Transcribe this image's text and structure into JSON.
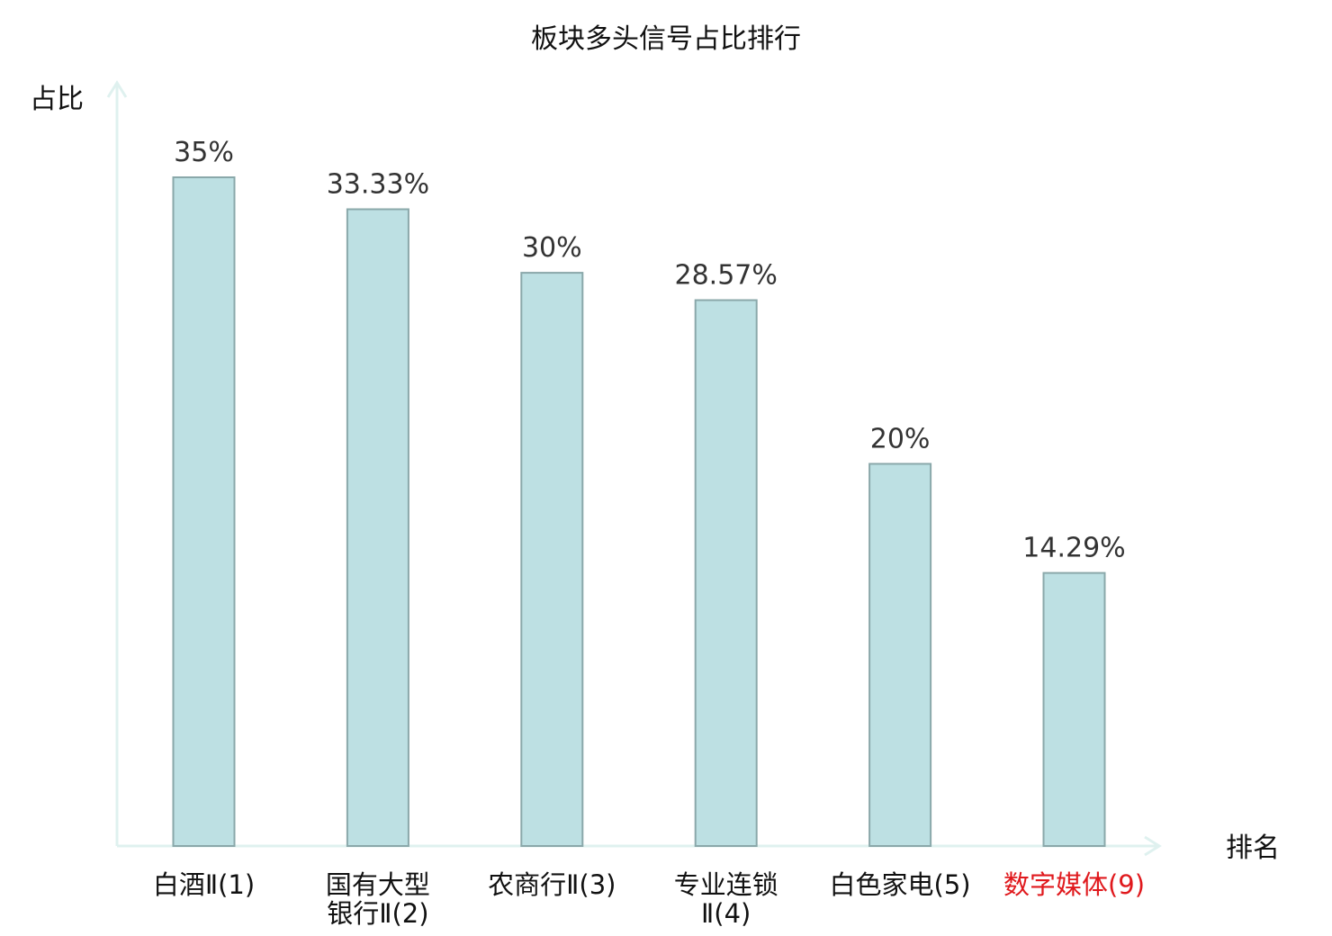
{
  "chart_data": {
    "type": "bar",
    "title": "板块多头信号占比排行",
    "ylabel": "占比",
    "xlabel": "排名",
    "ylim": [
      0,
      35
    ],
    "grid": false,
    "categories": [
      {
        "lines": [
          "白酒Ⅱ(1)"
        ],
        "highlight": false
      },
      {
        "lines": [
          "国有大型",
          "银行Ⅱ(2)"
        ],
        "highlight": false
      },
      {
        "lines": [
          "农商行Ⅱ(3)"
        ],
        "highlight": false
      },
      {
        "lines": [
          "专业连锁",
          "Ⅱ(4)"
        ],
        "highlight": false
      },
      {
        "lines": [
          "白色家电(5)"
        ],
        "highlight": false
      },
      {
        "lines": [
          "数字媒体(9)"
        ],
        "highlight": true
      }
    ],
    "values": [
      35,
      33.33,
      30,
      28.57,
      20,
      14.29
    ],
    "value_labels": [
      "35%",
      "33.33%",
      "30%",
      "28.57%",
      "20%",
      "14.29%"
    ],
    "colors": {
      "bar_fill": "#bde0e3",
      "bar_stroke": "#8aa8aa",
      "axis": "#dff1ef",
      "label_default": "#111111",
      "label_highlight": "#e0191d"
    }
  }
}
